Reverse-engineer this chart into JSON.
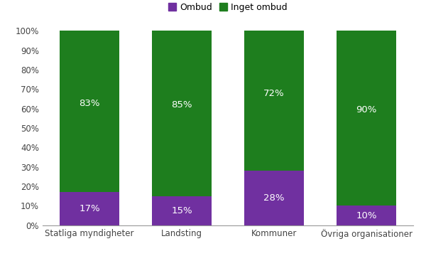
{
  "categories": [
    "Statliga myndigheter",
    "Landsting",
    "Kommuner",
    "Övriga organisationer"
  ],
  "ombud_values": [
    17,
    15,
    28,
    10
  ],
  "inget_ombud_values": [
    83,
    85,
    72,
    90
  ],
  "ombud_color": "#7030a0",
  "inget_ombud_color": "#1e7e1e",
  "bar_width": 0.65,
  "ylim": [
    0,
    100
  ],
  "yticks": [
    0,
    10,
    20,
    30,
    40,
    50,
    60,
    70,
    80,
    90,
    100
  ],
  "ytick_labels": [
    "0%",
    "10%",
    "20%",
    "30%",
    "40%",
    "50%",
    "60%",
    "70%",
    "80%",
    "90%",
    "100%"
  ],
  "legend_ombud": "Ombud",
  "legend_inget": "Inget ombud",
  "label_color": "#ffffff",
  "label_fontsize": 9.5,
  "background_color": "#ffffff",
  "axis_color": "#999999",
  "tick_label_color": "#444444",
  "tick_fontsize": 8.5,
  "legend_fontsize": 9
}
